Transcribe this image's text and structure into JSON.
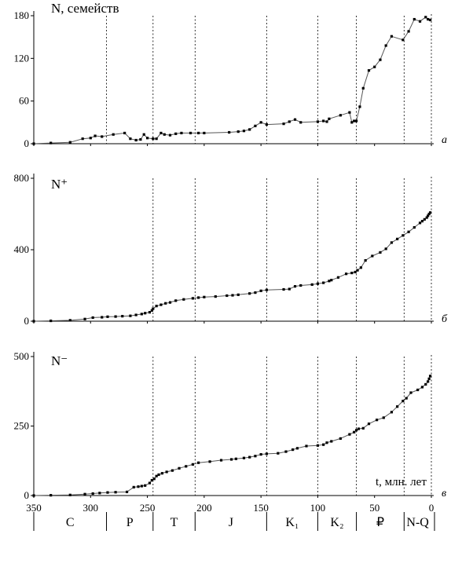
{
  "chart_data": [
    {
      "type": "line",
      "panel": "а",
      "ylabel": "N, семейств",
      "yticks": [
        "0",
        "60",
        "120",
        "180"
      ],
      "ylim": [
        0,
        180
      ],
      "xlim": [
        350,
        0
      ],
      "series": [
        {
          "x": [
            350,
            335,
            318,
            307,
            300,
            296,
            290,
            280,
            270,
            265,
            260,
            256,
            253,
            250,
            245,
            242,
            238,
            235,
            230,
            225,
            220,
            212,
            205,
            200,
            178,
            170,
            165,
            160,
            155,
            150,
            145,
            130,
            125,
            120,
            115,
            100,
            95,
            92,
            90,
            80,
            72,
            70,
            68,
            66,
            63,
            60,
            55,
            50,
            45,
            40,
            35,
            25,
            20,
            15,
            10,
            5,
            3,
            1
          ],
          "y": [
            0,
            1,
            2,
            7,
            8,
            11,
            10,
            13,
            15,
            7,
            5,
            6,
            13,
            8,
            7,
            7,
            15,
            13,
            12,
            14,
            15,
            15,
            15,
            15,
            16,
            17,
            18,
            20,
            25,
            30,
            27,
            28,
            31,
            34,
            30,
            31,
            32,
            31,
            35,
            40,
            44,
            30,
            32,
            32,
            52,
            78,
            103,
            108,
            118,
            138,
            151,
            146,
            158,
            175,
            172,
            178,
            175,
            174
          ]
        }
      ],
      "dashed_at": [
        286,
        245,
        208,
        145,
        100,
        66,
        24
      ],
      "yticks_values": [
        0,
        60,
        120,
        180
      ]
    },
    {
      "type": "line",
      "panel": "б",
      "ylabel": "N⁺",
      "yticks": [
        "0",
        "400",
        "800"
      ],
      "ylim": [
        0,
        800
      ],
      "xlim": [
        350,
        0
      ],
      "series": [
        {
          "x": [
            350,
            335,
            318,
            305,
            298,
            290,
            285,
            278,
            272,
            265,
            260,
            255,
            252,
            248,
            246,
            245,
            242,
            238,
            234,
            230,
            225,
            218,
            210,
            205,
            200,
            190,
            180,
            175,
            170,
            160,
            155,
            150,
            145,
            130,
            125,
            120,
            115,
            105,
            100,
            95,
            90,
            88,
            82,
            75,
            70,
            67,
            65,
            62,
            58,
            52,
            45,
            40,
            35,
            30,
            25,
            20,
            15,
            10,
            8,
            6,
            4,
            3,
            2,
            1
          ],
          "y": [
            0,
            2,
            5,
            12,
            20,
            22,
            25,
            26,
            28,
            30,
            35,
            40,
            45,
            50,
            60,
            70,
            85,
            92,
            100,
            105,
            115,
            122,
            128,
            132,
            135,
            138,
            143,
            145,
            148,
            155,
            160,
            170,
            175,
            178,
            180,
            195,
            200,
            205,
            210,
            215,
            225,
            230,
            245,
            265,
            270,
            275,
            285,
            300,
            340,
            365,
            385,
            405,
            440,
            460,
            480,
            500,
            525,
            550,
            560,
            570,
            580,
            590,
            600,
            608
          ]
        }
      ],
      "dashed_at": [
        245,
        208,
        145,
        100,
        66,
        24
      ],
      "yticks_values": [
        0,
        400,
        800
      ]
    },
    {
      "type": "line",
      "panel": "в",
      "ylabel": "N⁻",
      "xlabel": "t, млн. лет",
      "yticks": [
        "0",
        "250",
        "500"
      ],
      "ylim": [
        0,
        500
      ],
      "xlim": [
        350,
        0
      ],
      "xticks": [
        "350",
        "300",
        "250",
        "200",
        "150",
        "100",
        "50",
        "0"
      ],
      "xticks_values": [
        350,
        300,
        250,
        200,
        150,
        100,
        50,
        0
      ],
      "series": [
        {
          "x": [
            350,
            335,
            318,
            305,
            298,
            292,
            285,
            278,
            268,
            262,
            258,
            255,
            252,
            248,
            246,
            244,
            242,
            240,
            237,
            233,
            228,
            222,
            216,
            210,
            205,
            195,
            185,
            176,
            172,
            165,
            160,
            155,
            150,
            145,
            135,
            128,
            122,
            118,
            110,
            100,
            95,
            92,
            88,
            80,
            72,
            68,
            66,
            64,
            60,
            55,
            48,
            42,
            35,
            30,
            25,
            22,
            18,
            12,
            8,
            5,
            3,
            2,
            1
          ],
          "y": [
            0,
            1,
            2,
            5,
            7,
            9,
            11,
            12,
            13,
            30,
            32,
            34,
            36,
            45,
            55,
            60,
            70,
            75,
            80,
            85,
            90,
            98,
            105,
            112,
            118,
            122,
            127,
            130,
            132,
            135,
            138,
            142,
            148,
            150,
            152,
            158,
            165,
            170,
            178,
            180,
            183,
            190,
            195,
            205,
            220,
            228,
            235,
            240,
            242,
            258,
            272,
            280,
            300,
            320,
            340,
            350,
            370,
            380,
            390,
            400,
            410,
            420,
            430
          ]
        }
      ],
      "dashed_at": [
        245,
        208,
        145,
        100,
        66,
        24
      ],
      "yticks_values": [
        0,
        250,
        500
      ]
    }
  ],
  "periods": [
    "C",
    "P",
    "T",
    "J",
    "K₁",
    "K₂",
    "₽",
    "N-Q"
  ],
  "period_boundaries": [
    286,
    245,
    208,
    145,
    100,
    66,
    24
  ]
}
